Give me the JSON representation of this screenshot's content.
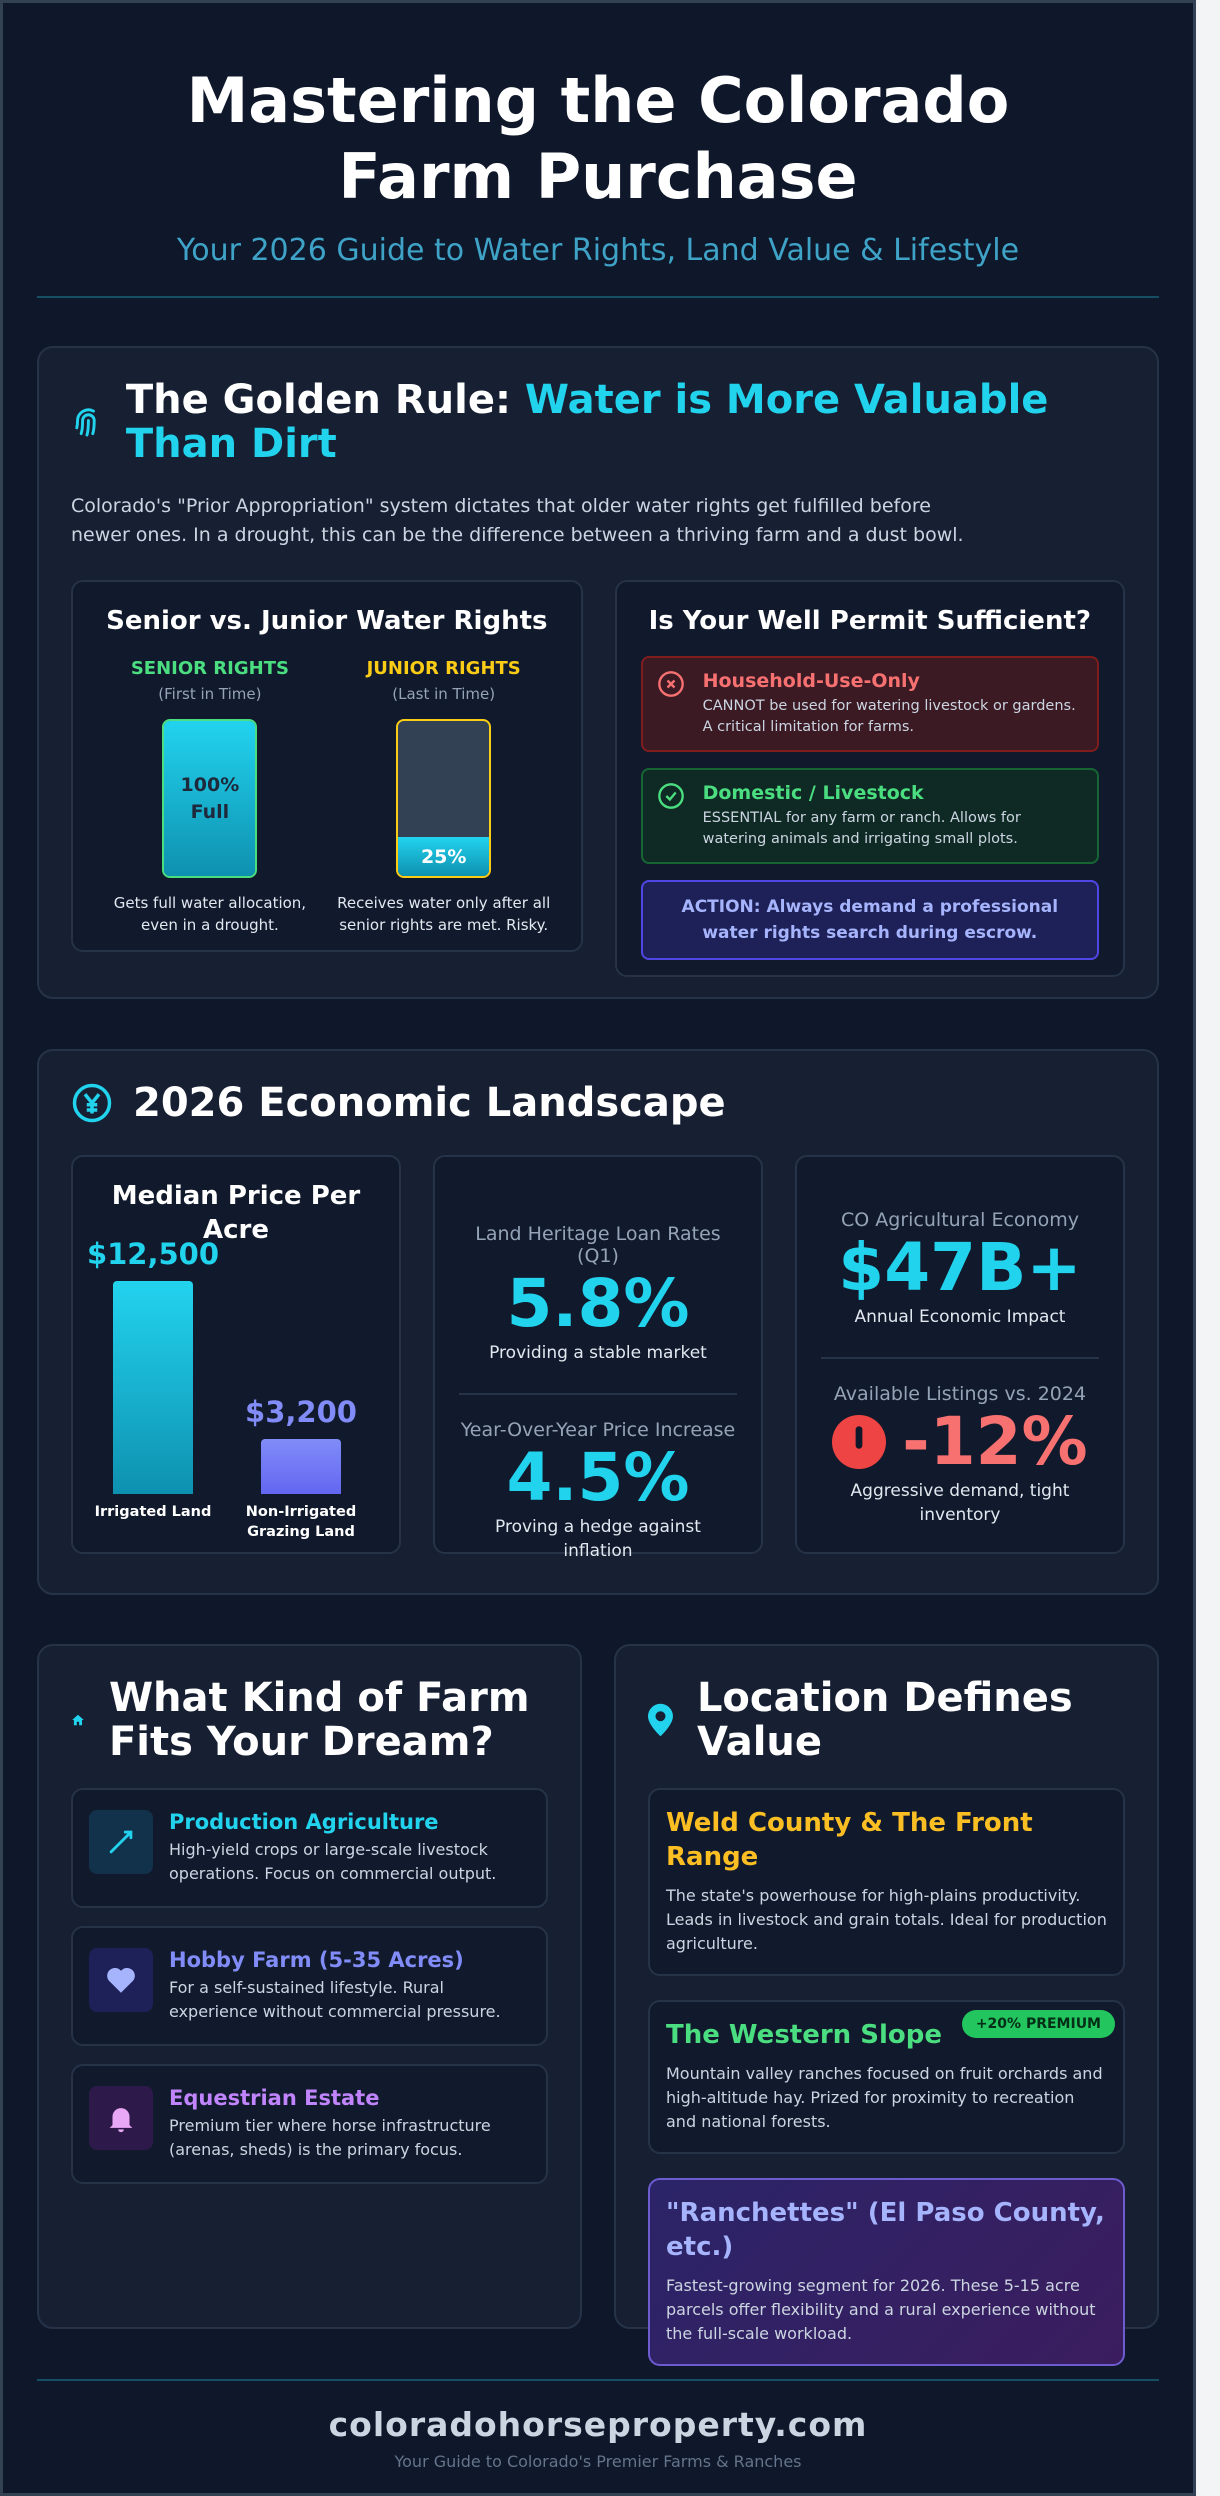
{
  "header": {
    "title": "Mastering the Colorado Farm Purchase",
    "subtitle": "Your 2026 Guide to Water Rights, Land Value & Lifestyle"
  },
  "water": {
    "heading_prefix": "The Golden Rule:",
    "heading_highlight": "Water is More Valuable Than Dirt",
    "intro": "Colorado's \"Prior Appropriation\" system dictates that older water rights get fulfilled before newer ones. In a drought, this can be the difference between a thriving farm and a dust bowl.",
    "rights": {
      "title": "Senior vs. Junior Water Rights",
      "senior": {
        "label": "SENIOR RIGHTS",
        "sub": "(First in Time)",
        "value": 100,
        "value_label": "100%",
        "value_word": "Full",
        "note": "Gets full water allocation, even in a drought."
      },
      "junior": {
        "label": "JUNIOR RIGHTS",
        "sub": "(Last in Time)",
        "value": 25,
        "value_label": "25%",
        "note": "Receives water only after all senior rights are met. Risky."
      }
    },
    "permit": {
      "title": "Is Your Well Permit Sufficient?",
      "items": [
        {
          "title": "Household-Use-Only",
          "text": "CANNOT be used for watering livestock or gardens. A critical limitation for farms."
        },
        {
          "title": "Domestic / Livestock",
          "text": "ESSENTIAL for any farm or ranch. Allows for watering animals and irrigating small plots."
        }
      ],
      "action": "ACTION: Always demand a professional water rights search during escrow."
    }
  },
  "economy": {
    "title": "2026 Economic Landscape",
    "price": {
      "title": "Median Price Per Acre",
      "bars": [
        {
          "name": "Irrigated Land",
          "value": 12500,
          "label": "$12,500"
        },
        {
          "name": "Non-Irrigated Grazing Land",
          "value": 3200,
          "label": "$3,200"
        }
      ]
    },
    "rates": [
      {
        "label": "Land Heritage Loan Rates (Q1)",
        "value": "5.8%",
        "note": "Providing a stable market"
      },
      {
        "label": "Year-Over-Year Price Increase",
        "value": "4.5%",
        "note": "Proving a hedge against inflation"
      }
    ],
    "ag": {
      "label": "CO Agricultural Economy",
      "value": "$47B+",
      "note": "Annual Economic Impact"
    },
    "listings": {
      "label": "Available Listings vs. 2024",
      "value": "-12%",
      "note": "Aggressive demand, tight inventory"
    }
  },
  "farms": {
    "title": "What Kind of Farm Fits Your Dream?",
    "items": [
      {
        "title": "Production Agriculture",
        "text": "High-yield crops or large-scale livestock operations. Focus on commercial output."
      },
      {
        "title": "Hobby Farm (5-35 Acres)",
        "text": "For a self-sustained lifestyle. Rural experience without commercial pressure."
      },
      {
        "title": "Equestrian Estate",
        "text": "Premium tier where horse infrastructure (arenas, sheds) is the primary focus."
      }
    ]
  },
  "location": {
    "title": "Location Defines Value",
    "items": [
      {
        "title": "Weld County & The Front Range",
        "text": "The state's powerhouse for high-plains productivity. Leads in livestock and grain totals. Ideal for production agriculture."
      },
      {
        "title": "The Western Slope",
        "badge": "+20% PREMIUM",
        "text": "Mountain valley ranches focused on fruit orchards and high-altitude hay. Prized for proximity to recreation and national forests."
      },
      {
        "title": "\"Ranchettes\" (El Paso County, etc.)",
        "text": "Fastest-growing segment for 2026. These 5-15 acre parcels offer flexibility and a rural experience without the full-scale workload."
      }
    ]
  },
  "footer": {
    "site": "coloradohorseproperty.com",
    "tagline": "Your Guide to Colorado's Premier Farms & Ranches"
  }
}
